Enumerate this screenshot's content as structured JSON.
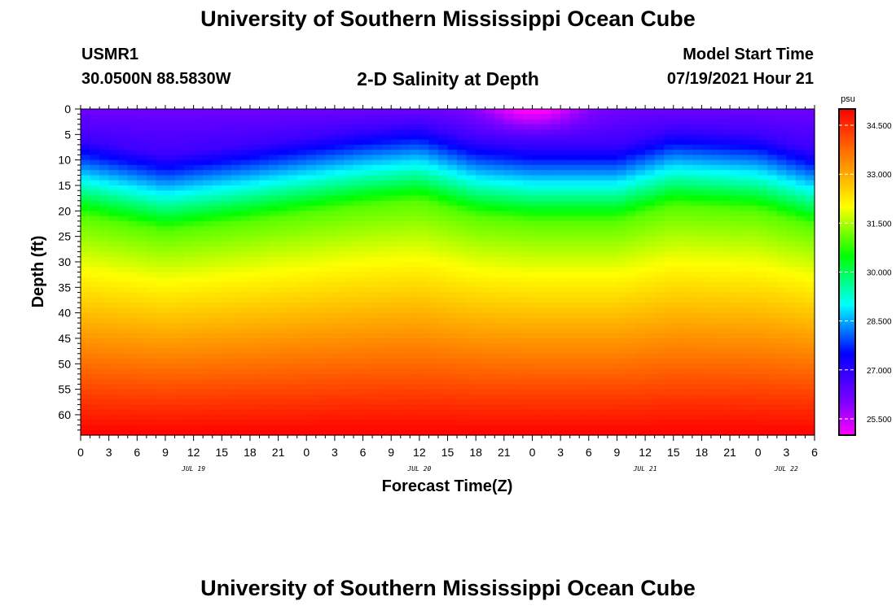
{
  "header": {
    "title": "University of Southern Mississippi Ocean Cube",
    "station": "USMR1",
    "coordinates": "30.0500N  88.5830W",
    "chart_title": "2-D Salinity at Depth",
    "model_start_label": "Model Start Time",
    "model_start_value": "07/19/2021 Hour 21"
  },
  "footer": {
    "title": "University of Southern Mississippi Ocean Cube"
  },
  "chart_data": {
    "type": "heatmap",
    "title": "2-D Salinity at Depth",
    "xlabel": "Forecast Time(Z)",
    "ylabel": "Depth (ft)",
    "x_ticks": [
      "0",
      "3",
      "6",
      "9",
      "12",
      "15",
      "18",
      "21",
      "0",
      "3",
      "6",
      "9",
      "12",
      "15",
      "18",
      "21",
      "0",
      "3",
      "6",
      "9",
      "12",
      "15",
      "18",
      "21",
      "0",
      "3",
      "6"
    ],
    "date_labels": [
      {
        "label": "JUL 19",
        "hour_index": 4
      },
      {
        "label": "JUL 20",
        "hour_index": 12
      },
      {
        "label": "JUL 21",
        "hour_index": 20
      },
      {
        "label": "JUL 22",
        "hour_index": 25
      }
    ],
    "y_ticks": [
      "0",
      "5",
      "10",
      "15",
      "20",
      "25",
      "30",
      "35",
      "40",
      "45",
      "50",
      "55",
      "60"
    ],
    "y_range_ft": [
      0,
      64
    ],
    "x_range_hours": [
      0,
      78
    ],
    "colorbar": {
      "unit": "psu",
      "ticks": [
        "34.500",
        "33.000",
        "31.500",
        "30.000",
        "28.500",
        "27.000",
        "25.500"
      ],
      "range": [
        25.0,
        35.0
      ]
    },
    "field_description": {
      "surface_min_psu": 25.5,
      "bottom_max_psu": 34.8,
      "samples": [
        {
          "hour": 0,
          "fresh_layer_depth_ft": 11
        },
        {
          "hour": 9,
          "fresh_layer_depth_ft": 14
        },
        {
          "hour": 18,
          "fresh_layer_depth_ft": 12
        },
        {
          "hour": 30,
          "fresh_layer_depth_ft": 9
        },
        {
          "hour": 36,
          "fresh_layer_depth_ft": 8
        },
        {
          "hour": 42,
          "fresh_layer_depth_ft": 11
        },
        {
          "hour": 48,
          "fresh_layer_depth_ft": 12
        },
        {
          "hour": 57,
          "fresh_layer_depth_ft": 12
        },
        {
          "hour": 63,
          "fresh_layer_depth_ft": 9
        },
        {
          "hour": 72,
          "fresh_layer_depth_ft": 10
        },
        {
          "hour": 78,
          "fresh_layer_depth_ft": 13
        }
      ]
    }
  }
}
